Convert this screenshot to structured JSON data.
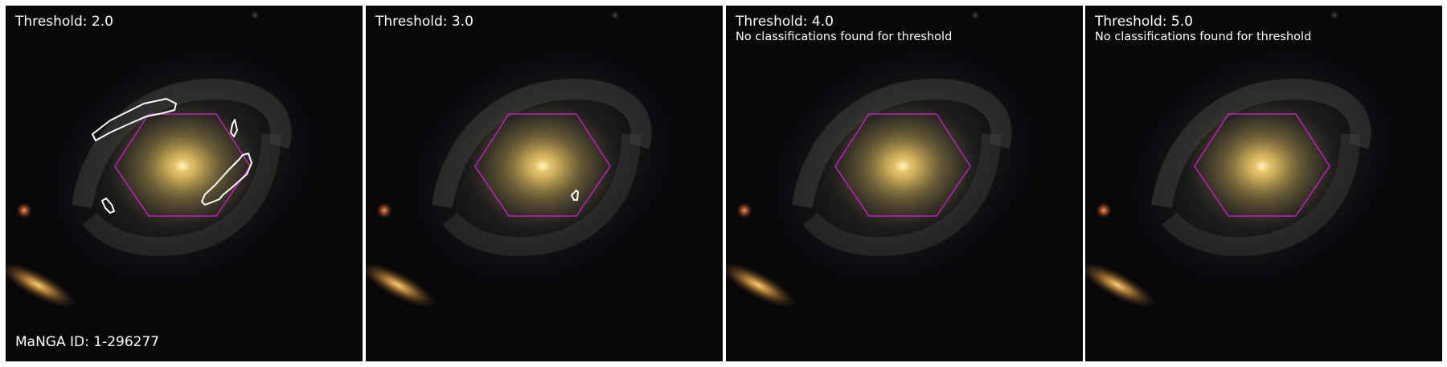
{
  "manga_id_label": "MaNGA ID: 1-296277",
  "colors": {
    "hexagon": "#c21fbf",
    "contour": "#ffffff",
    "background": "#07070a"
  },
  "panels": [
    {
      "title": "Threshold: 2.0",
      "note": ""
    },
    {
      "title": "Threshold: 3.0",
      "note": ""
    },
    {
      "title": "Threshold: 4.0",
      "note": "No classifications found for threshold"
    },
    {
      "title": "Threshold: 5.0",
      "note": "No classifications found for threshold"
    }
  ]
}
